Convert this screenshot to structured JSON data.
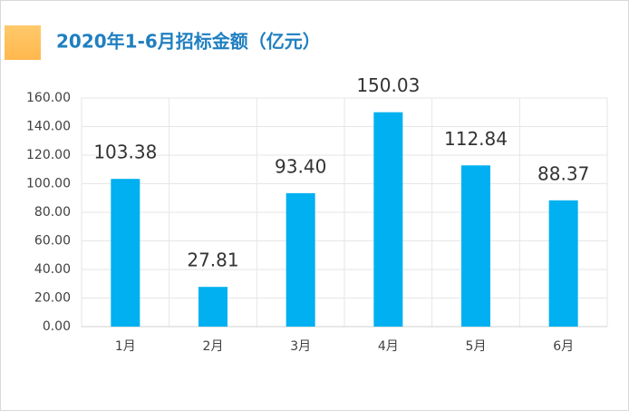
{
  "chart_data": {
    "type": "bar",
    "title": "2020年1-6月招标金额（亿元）",
    "categories": [
      "1月",
      "2月",
      "3月",
      "4月",
      "5月",
      "6月"
    ],
    "values": [
      103.38,
      27.81,
      93.4,
      150.03,
      112.84,
      88.37
    ],
    "value_labels": [
      "103.38",
      "27.81",
      "93.40",
      "150.03",
      "112.84",
      "88.37"
    ],
    "color": "#00b0f0",
    "ylim": [
      0,
      160
    ],
    "yticks": [
      {
        "value": 0,
        "label": "0.00"
      },
      {
        "value": 20,
        "label": "20.00"
      },
      {
        "value": 40,
        "label": "40.00"
      },
      {
        "value": 60,
        "label": "60.00"
      },
      {
        "value": 80,
        "label": "80.00"
      },
      {
        "value": 100,
        "label": "100.00"
      },
      {
        "value": 120,
        "label": "120.00"
      },
      {
        "value": 140,
        "label": "140.00"
      },
      {
        "value": 160,
        "label": "160.00"
      }
    ],
    "grid": true
  }
}
